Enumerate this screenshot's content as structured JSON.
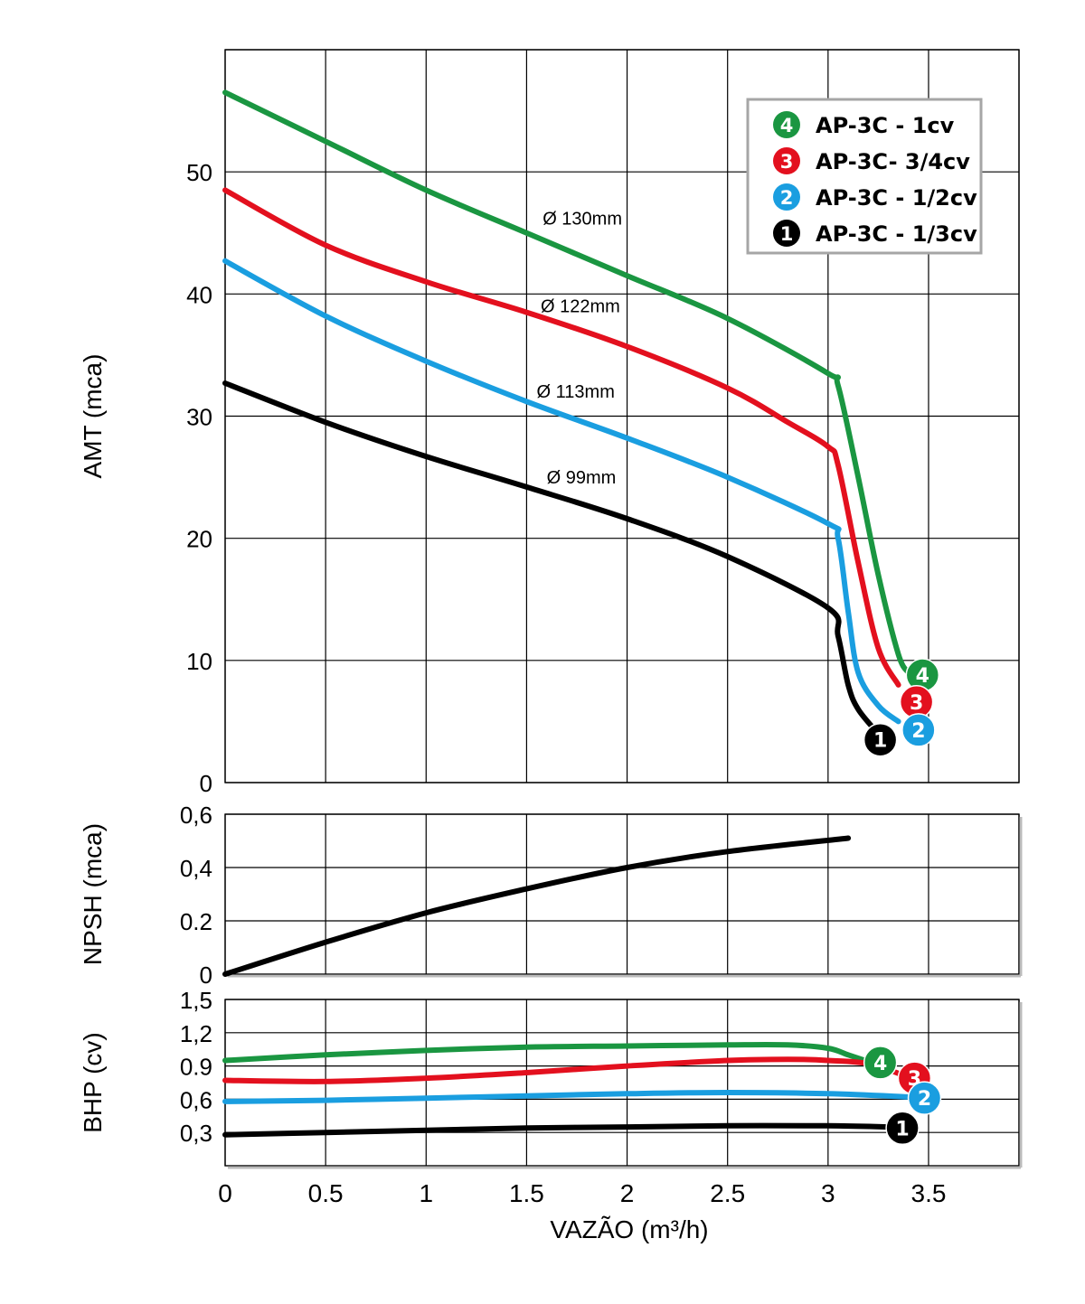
{
  "chart_data": [
    {
      "id": "amt",
      "type": "line",
      "ylabel": "AMT (mca)",
      "xlim": [
        0,
        3.95
      ],
      "ylim": [
        0,
        60
      ],
      "yticks": [
        0,
        10,
        20,
        30,
        40,
        50
      ],
      "ytick_labels": [
        "0",
        "10",
        "20",
        "30",
        "40",
        "50"
      ],
      "xgrid": [
        0,
        0.5,
        1,
        1.5,
        2,
        2.5,
        3,
        3.5,
        3.95
      ],
      "ygrid": [
        0,
        10,
        20,
        30,
        40,
        50,
        60
      ],
      "series": [
        {
          "key": "4",
          "color": "#1a9641",
          "points": [
            [
              0,
              56.5
            ],
            [
              0.5,
              52.5
            ],
            [
              1,
              48.5
            ],
            [
              1.5,
              45
            ],
            [
              2,
              41.5
            ],
            [
              2.5,
              38
            ],
            [
              3,
              33.5
            ],
            [
              3.05,
              32.5
            ],
            [
              3.15,
              25
            ],
            [
              3.25,
              17
            ],
            [
              3.35,
              10.5
            ],
            [
              3.4,
              9
            ]
          ]
        },
        {
          "key": "3",
          "color": "#e3101e",
          "points": [
            [
              0,
              48.5
            ],
            [
              0.5,
              44
            ],
            [
              1,
              41
            ],
            [
              1.5,
              38.5
            ],
            [
              2,
              35.7
            ],
            [
              2.5,
              32.3
            ],
            [
              2.8,
              29.5
            ],
            [
              3,
              27.5
            ],
            [
              3.05,
              26
            ],
            [
              3.15,
              18
            ],
            [
              3.25,
              11
            ],
            [
              3.35,
              8
            ]
          ]
        },
        {
          "key": "2",
          "color": "#1a9ee0",
          "points": [
            [
              0,
              42.7
            ],
            [
              0.5,
              38.2
            ],
            [
              1,
              34.5
            ],
            [
              1.5,
              31.2
            ],
            [
              2,
              28.2
            ],
            [
              2.5,
              25
            ],
            [
              3,
              21.2
            ],
            [
              3.05,
              20
            ],
            [
              3.1,
              14
            ],
            [
              3.15,
              9
            ],
            [
              3.25,
              6.3
            ],
            [
              3.35,
              5
            ]
          ]
        },
        {
          "key": "1",
          "color": "#000000",
          "points": [
            [
              0,
              32.7
            ],
            [
              0.5,
              29.5
            ],
            [
              1,
              26.7
            ],
            [
              1.5,
              24.2
            ],
            [
              2,
              21.6
            ],
            [
              2.5,
              18.5
            ],
            [
              3,
              14.3
            ],
            [
              3.05,
              12
            ],
            [
              3.1,
              8
            ],
            [
              3.15,
              6
            ],
            [
              3.25,
              4
            ]
          ]
        }
      ],
      "end_markers": [
        {
          "key": "4",
          "label": "4",
          "x": 3.47,
          "y": 8.8
        },
        {
          "key": "3",
          "label": "3",
          "x": 3.44,
          "y": 6.6
        },
        {
          "key": "2",
          "label": "2",
          "x": 3.45,
          "y": 4.3
        },
        {
          "key": "1",
          "label": "1",
          "x": 3.26,
          "y": 3.5
        }
      ],
      "annotations": [
        {
          "text": "Ø 130mm",
          "x": 1.58,
          "y": 45.7
        },
        {
          "text": "Ø 122mm",
          "x": 1.57,
          "y": 38.5
        },
        {
          "text": "Ø 113mm",
          "x": 1.55,
          "y": 31.5
        },
        {
          "text": "Ø 99mm",
          "x": 1.6,
          "y": 24.5
        }
      ],
      "legend": {
        "placement": "top-right",
        "items": [
          {
            "key": "4",
            "label": "AP-3C - 1cv"
          },
          {
            "key": "3",
            "label": "AP-3C- 3/4cv"
          },
          {
            "key": "2",
            "label": "AP-3C - 1/2cv"
          },
          {
            "key": "1",
            "label": "AP-3C - 1/3cv"
          }
        ]
      }
    },
    {
      "id": "npsh",
      "type": "line",
      "ylabel": "NPSH (mca)",
      "xlim": [
        0,
        3.95
      ],
      "ylim": [
        0,
        0.6
      ],
      "yticks": [
        0,
        0.2,
        0.4,
        0.6
      ],
      "ytick_labels": [
        "0",
        "0.2",
        "0,4",
        "0,6"
      ],
      "xgrid": [
        0,
        0.5,
        1,
        1.5,
        2,
        2.5,
        3,
        3.5,
        3.95
      ],
      "ygrid": [
        0.2,
        0.4,
        0.6
      ],
      "series": [
        {
          "key": "npsh",
          "color": "#000000",
          "points": [
            [
              0,
              0
            ],
            [
              0.5,
              0.12
            ],
            [
              1,
              0.23
            ],
            [
              1.5,
              0.32
            ],
            [
              2,
              0.4
            ],
            [
              2.5,
              0.46
            ],
            [
              3.1,
              0.51
            ]
          ]
        }
      ]
    },
    {
      "id": "bhp",
      "type": "line",
      "ylabel": "BHP (cv)",
      "xlim": [
        0,
        3.95
      ],
      "ylim": [
        0,
        1.5
      ],
      "yticks": [
        0.3,
        0.6,
        0.9,
        1.2,
        1.5
      ],
      "ytick_labels": [
        "0,3",
        "0,6",
        "0.9",
        "1,2",
        "1,5"
      ],
      "xgrid": [
        0,
        0.5,
        1,
        1.5,
        2,
        2.5,
        3,
        3.5,
        3.95
      ],
      "ygrid": [
        0.3,
        0.6,
        0.9,
        1.2,
        1.5
      ],
      "xticks": [
        0,
        0.5,
        1,
        1.5,
        2,
        2.5,
        3,
        3.5
      ],
      "xtick_labels": [
        "0",
        "0.5",
        "1",
        "1.5",
        "2",
        "2.5",
        "3",
        "3.5"
      ],
      "xlabel": "VAZÃO (m³/h)",
      "series": [
        {
          "key": "4",
          "color": "#1a9641",
          "points": [
            [
              0,
              0.95
            ],
            [
              0.5,
              1.0
            ],
            [
              1,
              1.04
            ],
            [
              1.5,
              1.07
            ],
            [
              2,
              1.08
            ],
            [
              2.5,
              1.09
            ],
            [
              2.8,
              1.09
            ],
            [
              3,
              1.06
            ],
            [
              3.1,
              1.0
            ],
            [
              3.2,
              0.94
            ]
          ]
        },
        {
          "key": "3",
          "color": "#e3101e",
          "points": [
            [
              0,
              0.77
            ],
            [
              0.5,
              0.76
            ],
            [
              1,
              0.79
            ],
            [
              1.5,
              0.84
            ],
            [
              2,
              0.9
            ],
            [
              2.5,
              0.95
            ],
            [
              2.8,
              0.96
            ],
            [
              3,
              0.95
            ],
            [
              3.2,
              0.92
            ],
            [
              3.4,
              0.8
            ]
          ]
        },
        {
          "key": "2",
          "color": "#1a9ee0",
          "points": [
            [
              0,
              0.58
            ],
            [
              0.5,
              0.59
            ],
            [
              1,
              0.61
            ],
            [
              1.5,
              0.63
            ],
            [
              2,
              0.65
            ],
            [
              2.5,
              0.66
            ],
            [
              3,
              0.65
            ],
            [
              3.4,
              0.62
            ]
          ]
        },
        {
          "key": "1",
          "color": "#000000",
          "points": [
            [
              0,
              0.28
            ],
            [
              0.5,
              0.3
            ],
            [
              1,
              0.32
            ],
            [
              1.5,
              0.34
            ],
            [
              2,
              0.35
            ],
            [
              2.5,
              0.36
            ],
            [
              3,
              0.36
            ],
            [
              3.3,
              0.35
            ]
          ]
        }
      ],
      "end_markers": [
        {
          "key": "4",
          "label": "4",
          "x": 3.26,
          "y": 0.93
        },
        {
          "key": "3",
          "label": "3",
          "x": 3.43,
          "y": 0.79
        },
        {
          "key": "2",
          "label": "2",
          "x": 3.48,
          "y": 0.61
        },
        {
          "key": "1",
          "label": "1",
          "x": 3.37,
          "y": 0.34
        }
      ]
    }
  ]
}
